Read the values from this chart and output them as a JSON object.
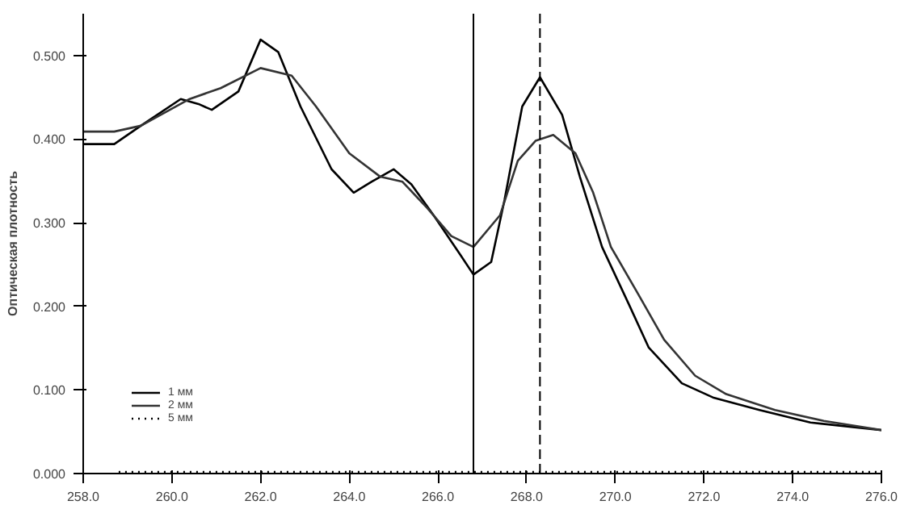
{
  "chart_data": {
    "type": "line",
    "ylabel": "Оптическая плотность",
    "xlim": [
      258,
      276
    ],
    "ylim": [
      0,
      0.55
    ],
    "xticks": [
      {
        "value": 258,
        "label": "258.0"
      },
      {
        "value": 260,
        "label": "260.0"
      },
      {
        "value": 262,
        "label": "262.0"
      },
      {
        "value": 264,
        "label": "264.0"
      },
      {
        "value": 266,
        "label": "266.0"
      },
      {
        "value": 268,
        "label": "268.0"
      },
      {
        "value": 270,
        "label": "270.0"
      },
      {
        "value": 272,
        "label": "272.0"
      },
      {
        "value": 274,
        "label": "274.0"
      },
      {
        "value": 276,
        "label": "276.0"
      }
    ],
    "yticks": [
      {
        "value": 0,
        "label": "0.000"
      },
      {
        "value": 0.1,
        "label": "0.100"
      },
      {
        "value": 0.2,
        "label": "0.200"
      },
      {
        "value": 0.3,
        "label": "0.300"
      },
      {
        "value": 0.4,
        "label": "0.400"
      },
      {
        "value": 0.5,
        "label": "0.500"
      }
    ],
    "grid": false,
    "legend": "bottom left",
    "marker": "none",
    "series": [
      {
        "name": "1 мм",
        "color": "#000000",
        "line_style": "solid",
        "x": [
          258.0,
          258.7,
          259.3,
          260.2,
          260.6,
          260.9,
          261.5,
          262.0,
          262.4,
          262.9,
          263.6,
          264.1,
          264.5,
          265.0,
          265.4,
          265.9,
          266.5,
          266.8,
          267.2,
          267.5,
          267.9,
          268.3,
          268.8,
          269.2,
          269.7,
          270.3,
          270.75,
          271.5,
          272.2,
          273.25,
          274.4,
          276.0
        ],
        "values": [
          0.394,
          0.394,
          0.416,
          0.448,
          0.442,
          0.435,
          0.457,
          0.519,
          0.504,
          0.439,
          0.364,
          0.336,
          0.349,
          0.364,
          0.346,
          0.309,
          0.262,
          0.238,
          0.253,
          0.327,
          0.439,
          0.474,
          0.429,
          0.355,
          0.271,
          0.203,
          0.151,
          0.108,
          0.091,
          0.076,
          0.061,
          0.052
        ]
      },
      {
        "name": "2 мм",
        "color": "#333333",
        "line_style": "solid",
        "x": [
          258.0,
          258.7,
          259.3,
          260.4,
          261.1,
          262.0,
          262.7,
          263.25,
          264.0,
          264.7,
          265.2,
          265.75,
          266.3,
          266.8,
          267.4,
          267.8,
          268.2,
          268.6,
          269.1,
          269.5,
          269.9,
          270.5,
          271.1,
          271.8,
          272.5,
          273.6,
          274.7,
          276.0
        ],
        "values": [
          0.409,
          0.409,
          0.416,
          0.448,
          0.461,
          0.485,
          0.476,
          0.439,
          0.383,
          0.355,
          0.349,
          0.318,
          0.284,
          0.271,
          0.309,
          0.374,
          0.398,
          0.405,
          0.383,
          0.336,
          0.271,
          0.216,
          0.16,
          0.117,
          0.095,
          0.076,
          0.063,
          0.052
        ]
      },
      {
        "name": "5 мм",
        "color": "#000000",
        "line_style": "dotted",
        "x": [
          258.8,
          264.0,
          270.0,
          276.0
        ],
        "values": [
          0.002,
          0.002,
          0.002,
          0.002
        ]
      }
    ],
    "ref_lines": [
      {
        "axis": "x",
        "value": 266.8,
        "line_style": "solid",
        "color": "#000000"
      },
      {
        "axis": "x",
        "value": 268.3,
        "line_style": "dashed",
        "color": "#000000"
      }
    ]
  }
}
